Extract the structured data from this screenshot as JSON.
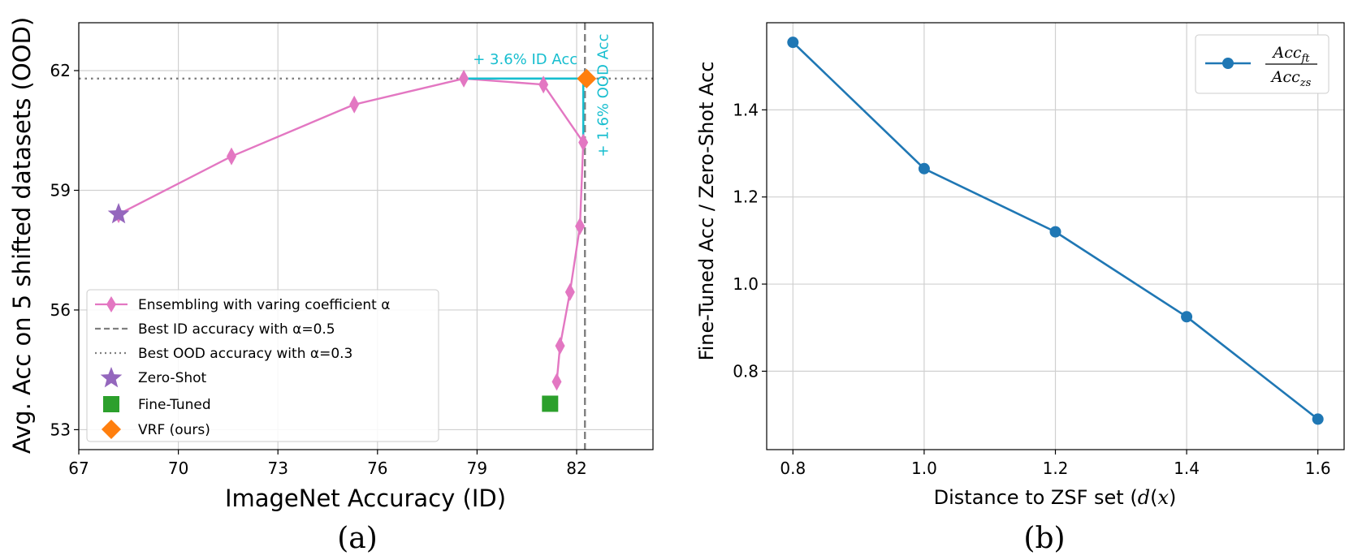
{
  "chart_data": [
    {
      "type": "line",
      "caption": "(a)",
      "xlabel": "ImageNet Accuracy (ID)",
      "ylabel": "Avg. Acc on 5 shifted datasets (OOD)",
      "xlim": [
        67,
        84.3
      ],
      "ylim": [
        52.5,
        63.2
      ],
      "xticks": [
        "67",
        "70",
        "73",
        "76",
        "79",
        "82"
      ],
      "xtick_values": [
        67,
        70,
        73,
        76,
        79,
        82
      ],
      "yticks": [
        "53",
        "56",
        "59",
        "62"
      ],
      "ytick_values": [
        53,
        56,
        59,
        62
      ],
      "grid": true,
      "legend_position": "lower-left",
      "series": [
        {
          "name": "Ensembling with varing coefficient α",
          "color": "#e377c2",
          "marker": "thin_diamond",
          "x": [
            68.2,
            71.6,
            75.3,
            78.6,
            81.0,
            82.2,
            82.1,
            81.8,
            81.5,
            81.4
          ],
          "y": [
            58.4,
            59.85,
            61.15,
            61.8,
            61.65,
            60.2,
            58.1,
            56.45,
            55.1,
            54.2
          ]
        },
        {
          "name": "Zero-Shot",
          "color": "#9467bd",
          "marker": "star",
          "x": [
            68.2
          ],
          "y": [
            58.4
          ]
        },
        {
          "name": "Fine-Tuned",
          "color": "#2ca02c",
          "marker": "square",
          "x": [
            81.2
          ],
          "y": [
            53.65
          ]
        },
        {
          "name": "VRF (ours)",
          "color": "#ff7f0e",
          "marker": "diamond",
          "x": [
            82.3
          ],
          "y": [
            61.8
          ]
        }
      ],
      "reference_lines": [
        {
          "name": "Best ID accuracy with α=0.5",
          "orientation": "vertical",
          "value": 82.25,
          "style": "dashed",
          "color": "#7f7f7f"
        },
        {
          "name": "Best OOD accuracy with α=0.3",
          "orientation": "horizontal",
          "value": 61.8,
          "style": "dotted",
          "color": "#7f7f7f"
        }
      ],
      "annotations": [
        {
          "text": "+ 3.6% ID Acc",
          "color": "#17becf"
        },
        {
          "text": "+ 1.6% OOD Acc",
          "color": "#17becf"
        }
      ]
    },
    {
      "type": "line",
      "caption": "(b)",
      "xlabel": "Distance to ZSF set (d(x))",
      "ylabel": "Fine-Tuned Acc / Zero-Shot Acc",
      "xlim": [
        0.76,
        1.64
      ],
      "ylim": [
        0.62,
        1.6
      ],
      "xticks": [
        "0.8",
        "1.0",
        "1.2",
        "1.4",
        "1.6"
      ],
      "xtick_values": [
        0.8,
        1.0,
        1.2,
        1.4,
        1.6
      ],
      "yticks": [
        "0.8",
        "1.0",
        "1.2",
        "1.4"
      ],
      "ytick_values": [
        0.8,
        1.0,
        1.2,
        1.4
      ],
      "grid": true,
      "legend_position": "top-right",
      "series": [
        {
          "name": "Acc_ft / Acc_zs",
          "color": "#1f77b4",
          "marker": "circle",
          "x": [
            0.8,
            1.0,
            1.2,
            1.4,
            1.6
          ],
          "y": [
            1.555,
            1.265,
            1.12,
            0.925,
            0.69
          ]
        }
      ]
    }
  ]
}
